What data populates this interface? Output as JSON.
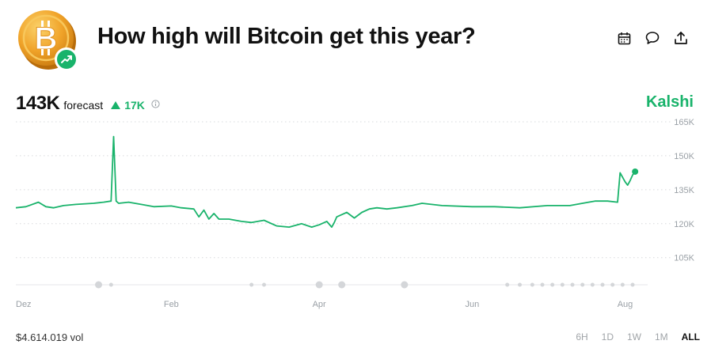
{
  "header": {
    "title": "How high will Bitcoin get this year?",
    "icon": "bitcoin-coin-icon",
    "badge_icon": "trending-up-icon"
  },
  "actions": [
    {
      "name": "calendar-button",
      "icon": "calendar-icon"
    },
    {
      "name": "comment-button",
      "icon": "comment-icon"
    },
    {
      "name": "share-button",
      "icon": "share-icon"
    }
  ],
  "forecast": {
    "value": "143K",
    "label": "forecast",
    "delta": "17K",
    "delta_direction": "up"
  },
  "brand": "Kalshi",
  "colors": {
    "accent": "#19b36b",
    "bitcoin": "#f0a329",
    "grid": "#d7d9dc",
    "text_muted": "#9aa0a6"
  },
  "chart_data": {
    "type": "line",
    "ylim": [
      100000,
      165000
    ],
    "y_ticks": [
      {
        "value": 165000,
        "label": "165K"
      },
      {
        "value": 150000,
        "label": "150K"
      },
      {
        "value": 135000,
        "label": "135K"
      },
      {
        "value": 120000,
        "label": "120K"
      },
      {
        "value": 105000,
        "label": "105K"
      }
    ],
    "xlim": [
      "2024-12-01",
      "2025-08-10"
    ],
    "x_ticks": [
      {
        "date": "2024-12-01",
        "label": "Dez"
      },
      {
        "date": "2025-02-01",
        "label": "Feb"
      },
      {
        "date": "2025-04-01",
        "label": "Apr"
      },
      {
        "date": "2025-06-01",
        "label": "Jun"
      },
      {
        "date": "2025-08-01",
        "label": "Aug"
      }
    ],
    "grid": true,
    "series": [
      {
        "x": [
          "2024-12-01",
          "2024-12-05",
          "2024-12-10",
          "2024-12-13",
          "2024-12-16",
          "2024-12-20",
          "2024-12-25",
          "2025-01-01",
          "2025-01-05",
          "2025-01-08",
          "2025-01-09",
          "2025-01-10",
          "2025-01-11",
          "2025-01-15",
          "2025-01-20",
          "2025-01-25",
          "2025-02-01",
          "2025-02-05",
          "2025-02-10",
          "2025-02-12",
          "2025-02-14",
          "2025-02-16",
          "2025-02-18",
          "2025-02-20",
          "2025-02-24",
          "2025-03-01",
          "2025-03-05",
          "2025-03-10",
          "2025-03-15",
          "2025-03-20",
          "2025-03-25",
          "2025-03-29",
          "2025-04-01",
          "2025-04-04",
          "2025-04-06",
          "2025-04-07",
          "2025-04-08",
          "2025-04-10",
          "2025-04-12",
          "2025-04-15",
          "2025-04-18",
          "2025-04-21",
          "2025-04-24",
          "2025-04-28",
          "2025-05-02",
          "2025-05-08",
          "2025-05-12",
          "2025-05-20",
          "2025-06-01",
          "2025-06-10",
          "2025-06-20",
          "2025-07-01",
          "2025-07-10",
          "2025-07-15",
          "2025-07-20",
          "2025-07-25",
          "2025-07-29",
          "2025-07-30",
          "2025-08-01",
          "2025-08-02",
          "2025-08-03",
          "2025-08-04",
          "2025-08-05"
        ],
        "y": [
          127000,
          127500,
          129500,
          127500,
          127000,
          128000,
          128500,
          129000,
          129500,
          130000,
          158500,
          130000,
          129000,
          129500,
          128500,
          127500,
          127800,
          127000,
          126500,
          123000,
          126000,
          122000,
          124500,
          122000,
          122000,
          121000,
          120500,
          121500,
          119000,
          118500,
          120000,
          118500,
          119500,
          121000,
          118500,
          120500,
          123000,
          124000,
          125000,
          122500,
          125000,
          126500,
          127000,
          126500,
          127000,
          128000,
          129000,
          128000,
          127500,
          127500,
          127000,
          128000,
          128000,
          129000,
          130000,
          130000,
          129500,
          142500,
          138500,
          137000,
          139000,
          141500,
          143000
        ]
      }
    ],
    "markers": [
      {
        "x": "2025-01-03"
      },
      {
        "x": "2025-01-08"
      },
      {
        "x": "2025-03-05"
      },
      {
        "x": "2025-03-10"
      },
      {
        "x": "2025-04-01"
      },
      {
        "x": "2025-04-10"
      },
      {
        "x": "2025-05-05"
      },
      {
        "x": "2025-06-15"
      },
      {
        "x": "2025-06-20"
      },
      {
        "x": "2025-06-25"
      },
      {
        "x": "2025-06-29"
      },
      {
        "x": "2025-07-03"
      },
      {
        "x": "2025-07-07"
      },
      {
        "x": "2025-07-11"
      },
      {
        "x": "2025-07-15"
      },
      {
        "x": "2025-07-19"
      },
      {
        "x": "2025-07-23"
      },
      {
        "x": "2025-07-27"
      },
      {
        "x": "2025-07-31"
      },
      {
        "x": "2025-08-04"
      }
    ]
  },
  "footer": {
    "volume": "$4.614.019 vol",
    "ranges": [
      "6H",
      "1D",
      "1W",
      "1M",
      "ALL"
    ],
    "active_range": "ALL"
  }
}
